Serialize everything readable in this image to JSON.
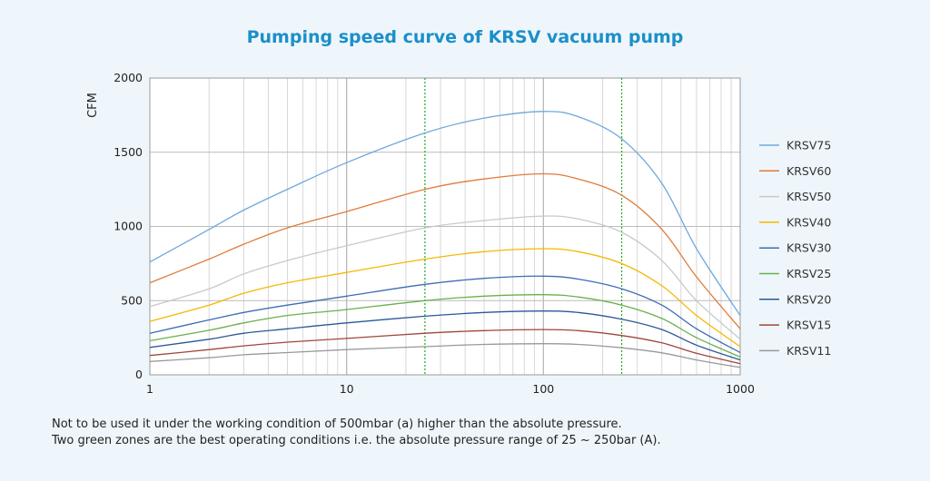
{
  "chart_data": {
    "type": "line",
    "title": "Pumping speed curve of KRSV vacuum pump",
    "xlabel": "",
    "ylabel": "CFM",
    "x_scale": "log",
    "xlim": [
      1,
      1000
    ],
    "ylim": [
      0,
      2000
    ],
    "x_ticks": [
      "1",
      "10",
      "100",
      "1000"
    ],
    "y_ticks": [
      "0",
      "500",
      "1000",
      "1500",
      "2000"
    ],
    "grid": true,
    "legend_position": "right",
    "reference_lines_x": [
      25,
      250
    ],
    "reference_line_color": "#22aa22",
    "x": [
      1,
      2,
      3,
      5,
      10,
      25,
      50,
      100,
      150,
      250,
      400,
      600,
      1000
    ],
    "series": [
      {
        "name": "KRSV75",
        "color": "#6fa8dc",
        "values": [
          760,
          980,
          1110,
          1250,
          1430,
          1630,
          1730,
          1775,
          1740,
          1590,
          1290,
          850,
          400
        ]
      },
      {
        "name": "KRSV60",
        "color": "#e07b39",
        "values": [
          620,
          780,
          880,
          990,
          1100,
          1250,
          1320,
          1355,
          1320,
          1210,
          980,
          660,
          310
        ]
      },
      {
        "name": "KRSV50",
        "color": "#c9c9c9",
        "values": [
          460,
          580,
          680,
          770,
          870,
          990,
          1040,
          1070,
          1050,
          960,
          770,
          500,
          240
        ]
      },
      {
        "name": "KRSV40",
        "color": "#f5b800",
        "values": [
          360,
          470,
          550,
          620,
          690,
          780,
          830,
          850,
          830,
          750,
          600,
          400,
          190
        ]
      },
      {
        "name": "KRSV30",
        "color": "#3d6db5",
        "values": [
          280,
          370,
          420,
          470,
          530,
          610,
          650,
          665,
          645,
          580,
          470,
          310,
          150
        ]
      },
      {
        "name": "KRSV25",
        "color": "#6ab04c",
        "values": [
          230,
          300,
          350,
          400,
          440,
          500,
          530,
          540,
          525,
          470,
          380,
          250,
          120
        ]
      },
      {
        "name": "KRSV20",
        "color": "#2c5699",
        "values": [
          185,
          240,
          280,
          310,
          350,
          395,
          420,
          430,
          420,
          375,
          305,
          200,
          100
        ]
      },
      {
        "name": "KRSV15",
        "color": "#a0463a",
        "values": [
          130,
          170,
          195,
          220,
          245,
          280,
          298,
          305,
          298,
          265,
          215,
          145,
          75
        ]
      },
      {
        "name": "KRSV11",
        "color": "#999999",
        "values": [
          90,
          115,
          135,
          150,
          170,
          190,
          205,
          210,
          205,
          182,
          148,
          100,
          50
        ]
      }
    ]
  },
  "notes": {
    "line1": "Not to be used it under the working condition of 500mbar (a) higher than the absolute pressure.",
    "line2": "Two green zones are the best operating conditions i.e. the absolute pressure range of 25 ~ 250bar (A)."
  }
}
